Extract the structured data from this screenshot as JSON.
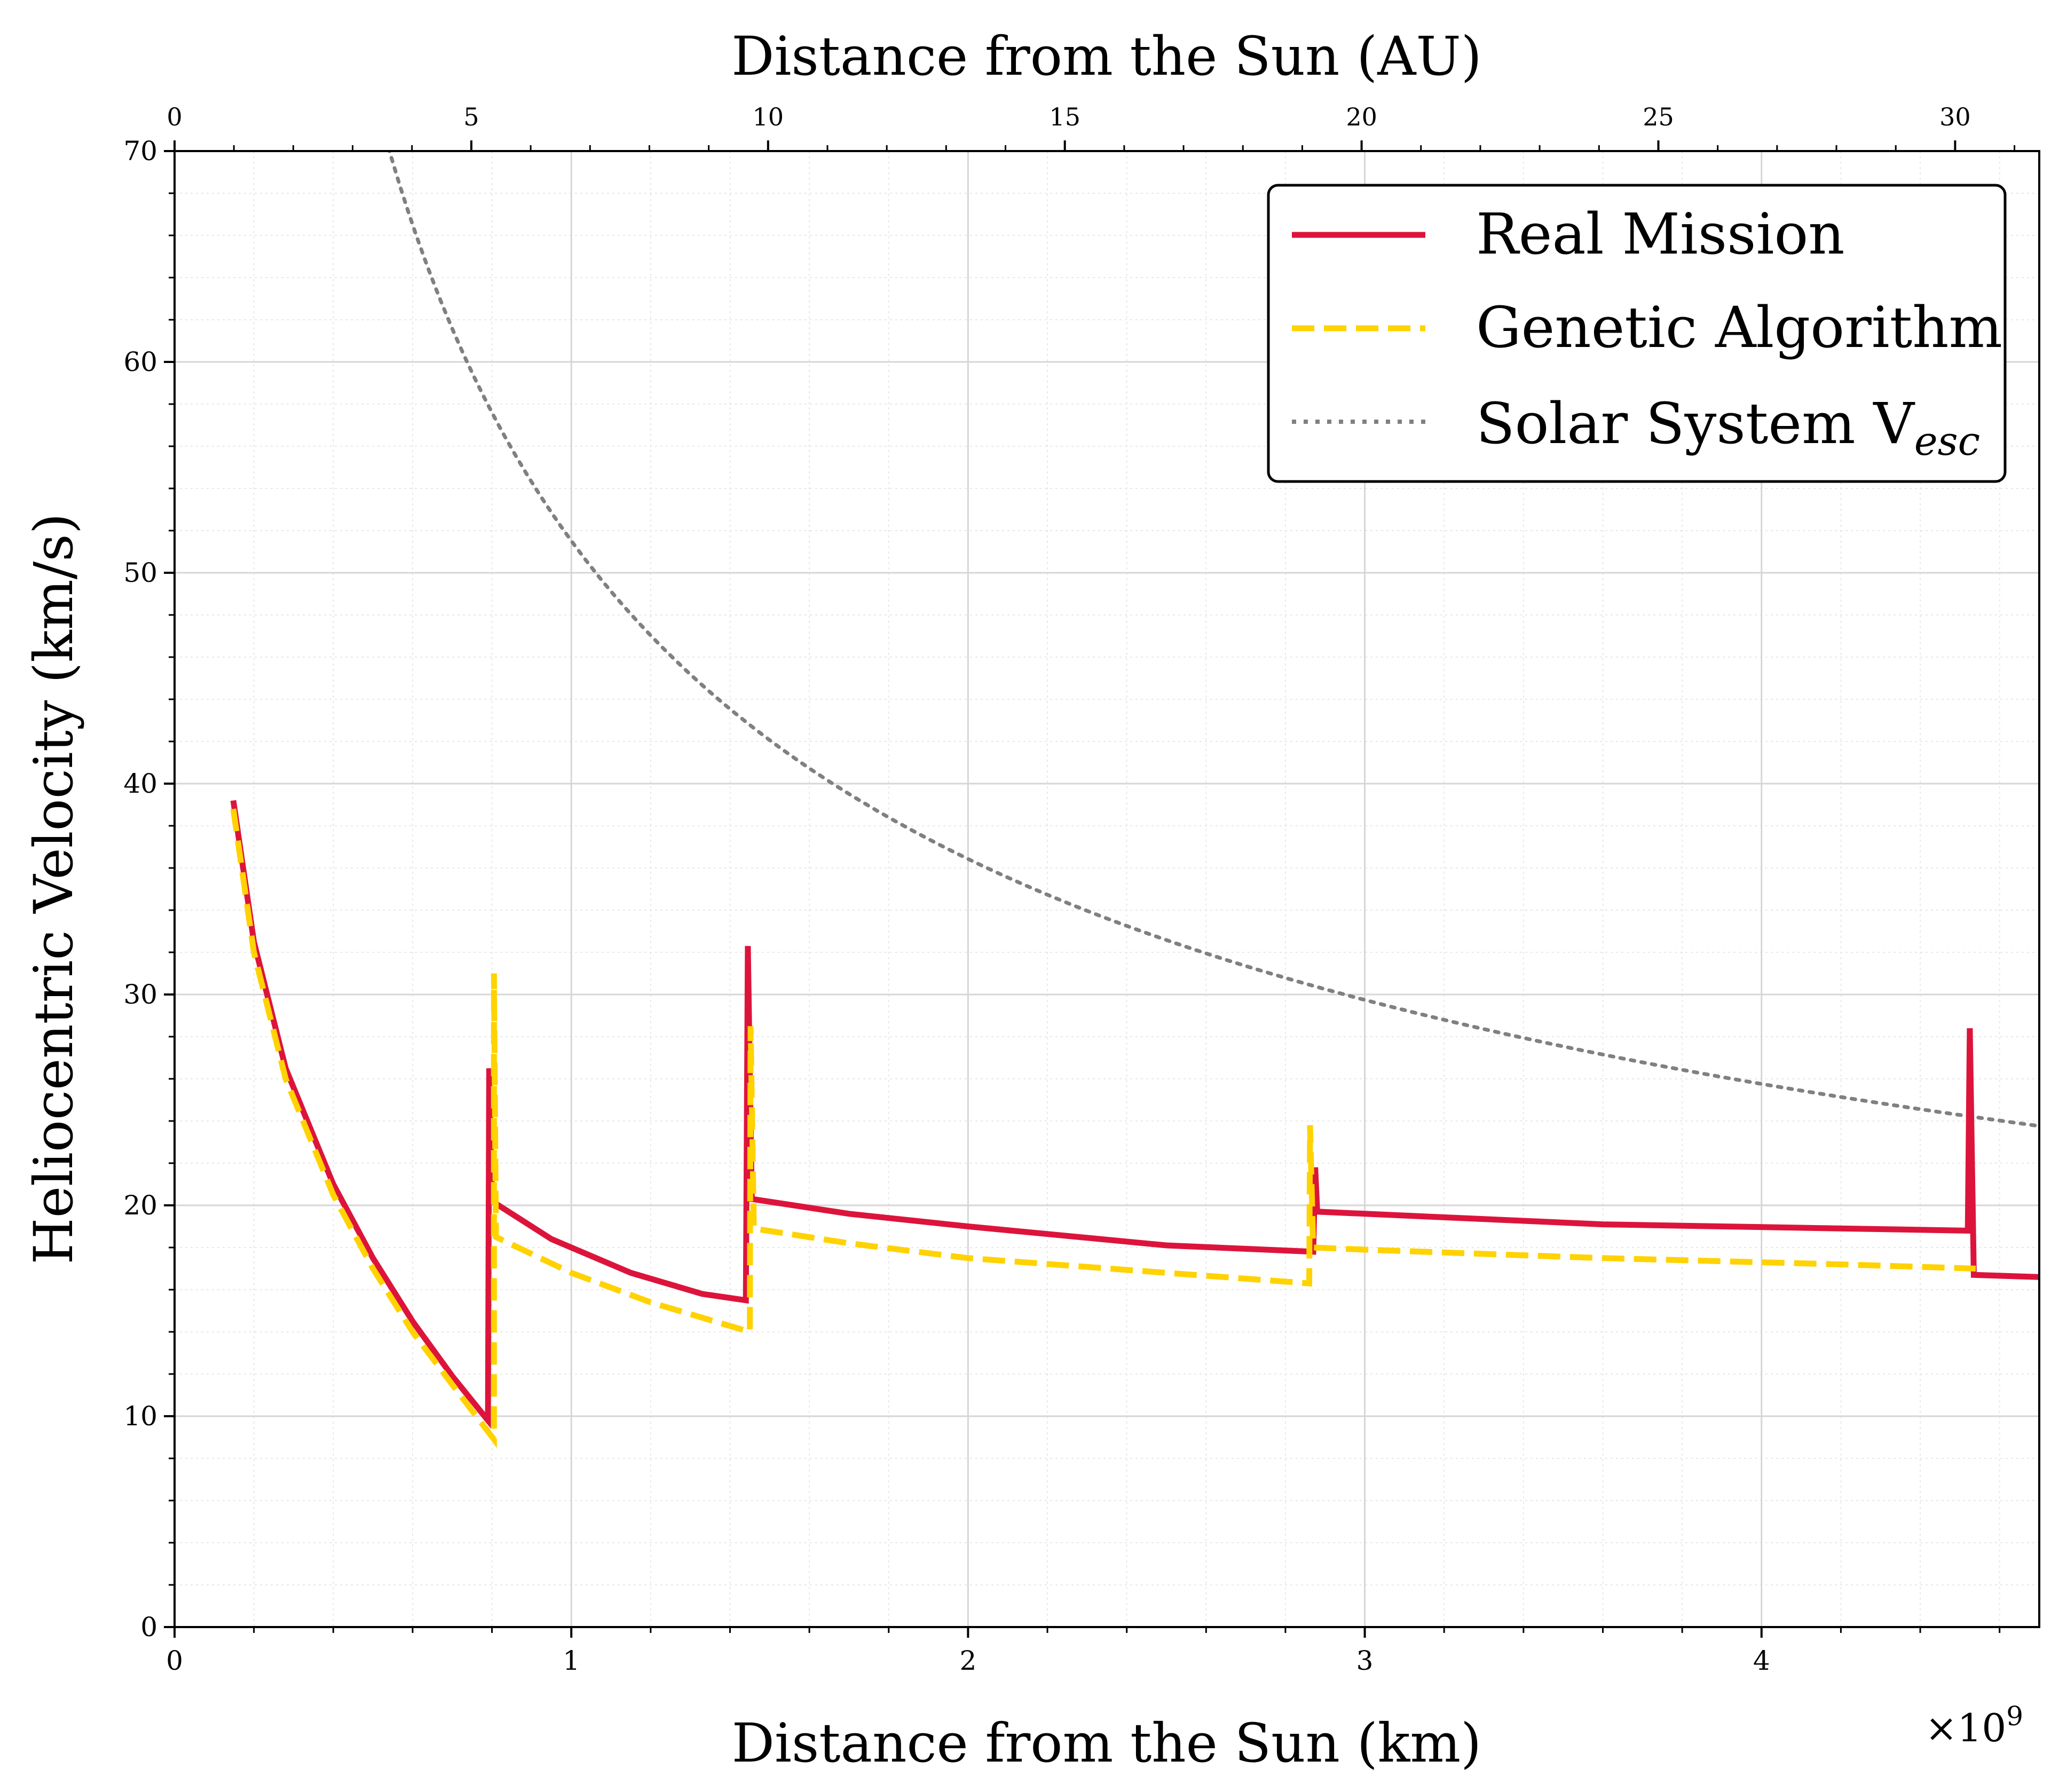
{
  "chart_data": {
    "type": "line",
    "xlabel": "Distance from the Sun (km)",
    "x_multiplier": "×10",
    "x_multiplier_exp": "9",
    "x2label": "Distance from the Sun (AU)",
    "ylabel": "Heliocentric Velocity (km/s)",
    "xlim": [
      0,
      4.7
    ],
    "ylim": [
      0,
      70
    ],
    "x_ticks": [
      0,
      1,
      2,
      3,
      4
    ],
    "x_tick_labels": [
      "0",
      "1",
      "2",
      "3",
      "4"
    ],
    "y_ticks": [
      0,
      10,
      20,
      30,
      40,
      50,
      60,
      70
    ],
    "y_tick_labels": [
      "0",
      "10",
      "20",
      "30",
      "40",
      "50",
      "60",
      "70"
    ],
    "x2_ticks_au": [
      0,
      5,
      10,
      15,
      20,
      25,
      30
    ],
    "x2_tick_labels": [
      "0",
      "5",
      "10",
      "15",
      "20",
      "25",
      "30"
    ],
    "grid": true,
    "legend_position": "top-right",
    "series": [
      {
        "name": "Real Mission",
        "color": "#dc143c",
        "style": "solid",
        "points": [
          [
            0.148,
            39.2
          ],
          [
            0.2,
            32.5
          ],
          [
            0.28,
            26.5
          ],
          [
            0.4,
            21.0
          ],
          [
            0.5,
            17.5
          ],
          [
            0.6,
            14.5
          ],
          [
            0.7,
            11.9
          ],
          [
            0.79,
            9.8
          ],
          [
            0.793,
            26.5
          ],
          [
            0.8,
            20.2
          ],
          [
            0.95,
            18.4
          ],
          [
            1.15,
            16.8
          ],
          [
            1.33,
            15.8
          ],
          [
            1.44,
            15.5
          ],
          [
            1.445,
            32.3
          ],
          [
            1.455,
            20.3
          ],
          [
            1.7,
            19.6
          ],
          [
            2.0,
            19.0
          ],
          [
            2.5,
            18.1
          ],
          [
            2.87,
            17.8
          ],
          [
            2.875,
            21.8
          ],
          [
            2.88,
            19.7
          ],
          [
            3.0,
            19.6
          ],
          [
            3.6,
            19.1
          ],
          [
            4.52,
            18.8
          ],
          [
            4.525,
            28.4
          ],
          [
            4.535,
            16.7
          ],
          [
            4.7,
            16.6
          ]
        ]
      },
      {
        "name": "Genetic Algorithm",
        "color": "#ffd200",
        "style": "dashed",
        "points": [
          [
            0.148,
            38.8
          ],
          [
            0.2,
            32.0
          ],
          [
            0.28,
            26.0
          ],
          [
            0.4,
            20.5
          ],
          [
            0.5,
            17.0
          ],
          [
            0.6,
            14.0
          ],
          [
            0.7,
            11.5
          ],
          [
            0.805,
            8.9
          ],
          [
            0.805,
            31.0
          ],
          [
            0.81,
            18.5
          ],
          [
            1.0,
            16.8
          ],
          [
            1.2,
            15.4
          ],
          [
            1.45,
            14.0
          ],
          [
            1.452,
            28.5
          ],
          [
            1.46,
            18.9
          ],
          [
            1.7,
            18.2
          ],
          [
            2.0,
            17.5
          ],
          [
            2.5,
            16.8
          ],
          [
            2.86,
            16.3
          ],
          [
            2.862,
            23.8
          ],
          [
            2.87,
            18.0
          ],
          [
            3.0,
            17.9
          ],
          [
            3.6,
            17.5
          ],
          [
            4.2,
            17.2
          ],
          [
            4.54,
            17.0
          ]
        ]
      },
      {
        "name": "Solar System V",
        "name_sub": "esc",
        "color": "#808080",
        "style": "dotted",
        "formula_constant": 1327000000000
      }
    ]
  }
}
